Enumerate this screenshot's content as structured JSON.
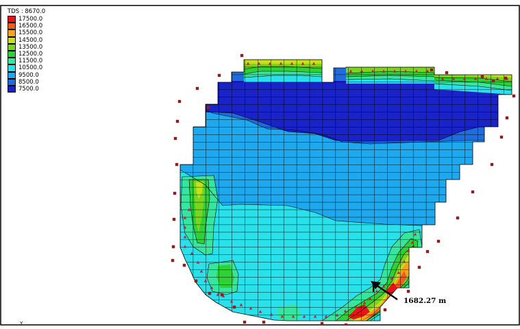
{
  "legend": {
    "title": "TDS : 8670.0",
    "items": [
      {
        "label": "17500.0",
        "color": "#e8141a"
      },
      {
        "label": "16500.0",
        "color": "#f25b1c"
      },
      {
        "label": "15500.0",
        "color": "#f6a21d"
      },
      {
        "label": "14500.0",
        "color": "#c3e21a"
      },
      {
        "label": "13500.0",
        "color": "#7bd51f"
      },
      {
        "label": "12500.0",
        "color": "#2fd136"
      },
      {
        "label": "11500.0",
        "color": "#37e69e"
      },
      {
        "label": "10500.0",
        "color": "#28e1ea"
      },
      {
        "label": "9500.0",
        "color": "#1ea8ee"
      },
      {
        "label": "8500.0",
        "color": "#1f6ddc"
      },
      {
        "label": "7500.0",
        "color": "#1a23c8"
      }
    ]
  },
  "scale": {
    "label": "1682.27 m"
  },
  "axis_marker": "Y",
  "colors": {
    "frame": "#000000",
    "grid_line": "#000000",
    "well_triangle": "#c0204a",
    "outside_well": "#8b2020",
    "arrow": "#000000"
  }
}
